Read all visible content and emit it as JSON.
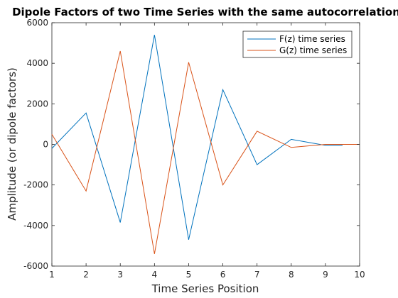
{
  "chart_data": {
    "type": "line",
    "title": "Dipole Factors of two Time Series with the same autocorrelation",
    "xlabel": "Time Series Position",
    "ylabel": "Amplitude (or dipole factors)",
    "xlim": [
      1,
      10
    ],
    "ylim": [
      -6000,
      6000
    ],
    "xticks": [
      "1",
      "2",
      "3",
      "4",
      "5",
      "6",
      "7",
      "8",
      "9",
      "10"
    ],
    "yticks": [
      "-6000",
      "-4000",
      "-2000",
      "0",
      "2000",
      "4000",
      "6000"
    ],
    "grid": false,
    "legend_position": "top-right",
    "series": [
      {
        "name": "F(z) time series",
        "color": "#0072bd",
        "x": [
          1,
          2,
          3,
          4,
          5,
          6,
          7,
          8,
          9,
          9.5
        ],
        "y": [
          -200,
          1550,
          -3850,
          5400,
          -4700,
          2700,
          -1000,
          250,
          -50,
          -50
        ]
      },
      {
        "name": "G(z) time series",
        "color": "#d95319",
        "x": [
          1,
          2,
          3,
          4,
          5,
          6,
          7,
          8,
          9,
          10
        ],
        "y": [
          500,
          -2300,
          4600,
          -5400,
          4050,
          -2000,
          650,
          -150,
          0,
          0
        ]
      }
    ]
  }
}
